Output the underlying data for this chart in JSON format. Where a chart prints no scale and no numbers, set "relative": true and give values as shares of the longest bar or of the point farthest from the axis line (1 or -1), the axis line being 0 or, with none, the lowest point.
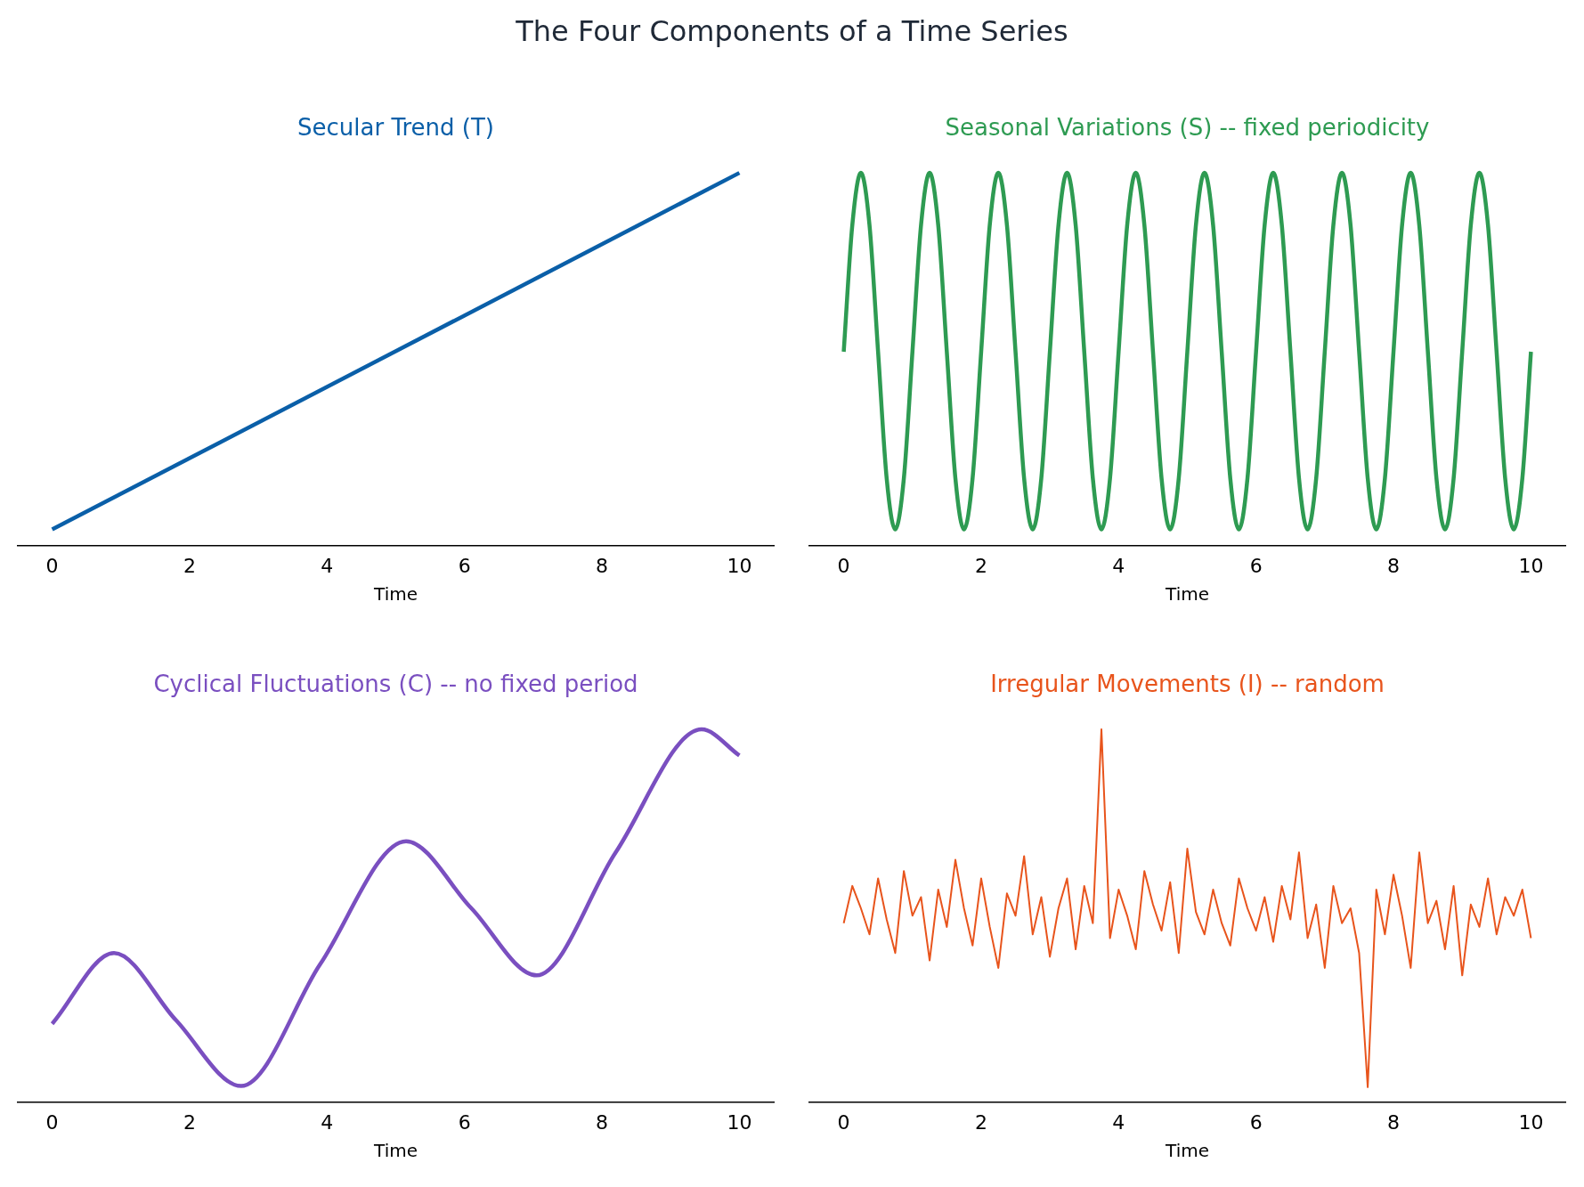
{
  "chart_data": [
    {
      "type": "line",
      "title": "Secular Trend (T)",
      "xlabel": "Time",
      "annotations": [
        "The Four Components of a Time Series"
      ],
      "relative": true,
      "xlim": [
        -0.5,
        10.5
      ],
      "xticks": [
        0,
        2,
        4,
        6,
        8,
        10
      ],
      "tick_labels": "x",
      "grid": false,
      "legend": false,
      "marker": "none",
      "line_style": "solid",
      "color": "#0a5fa8",
      "x": [
        0,
        10
      ],
      "values": [
        0.043,
        1
      ]
    },
    {
      "type": "line",
      "title": "Seasonal Variations (S) -- fixed periodicity",
      "xlabel": "Time",
      "relative": true,
      "xlim": [
        -0.5,
        10.5
      ],
      "xticks": [
        0,
        2,
        4,
        6,
        8,
        10
      ],
      "tick_labels": "x",
      "grid": false,
      "legend": false,
      "marker": "none",
      "line_style": "solid",
      "color": "#2e9b52",
      "x": [
        0,
        0.125,
        0.25,
        0.375,
        0.5,
        0.625,
        0.75,
        0.875,
        1,
        1.125,
        1.25,
        1.375,
        1.5,
        1.625,
        1.75,
        1.875,
        2,
        2.125,
        2.25,
        2.375,
        2.5,
        2.625,
        2.75,
        2.875,
        3,
        3.125,
        3.25,
        3.375,
        3.5,
        3.625,
        3.75,
        3.875,
        4,
        4.125,
        4.25,
        4.375,
        4.5,
        4.625,
        4.75,
        4.875,
        5,
        5.125,
        5.25,
        5.375,
        5.5,
        5.625,
        5.75,
        5.875,
        6,
        6.125,
        6.25,
        6.375,
        6.5,
        6.625,
        6.75,
        6.875,
        7,
        7.125,
        7.25,
        7.375,
        7.5,
        7.625,
        7.75,
        7.875,
        8,
        8.125,
        8.25,
        8.375,
        8.5,
        8.625,
        8.75,
        8.875,
        9,
        9.125,
        9.25,
        9.375,
        9.5,
        9.625,
        9.75,
        9.875,
        10
      ],
      "values": [
        0.52,
        0.86,
        1,
        0.86,
        0.52,
        0.18,
        0.043,
        0.18,
        0.52,
        0.86,
        1,
        0.86,
        0.52,
        0.18,
        0.043,
        0.18,
        0.52,
        0.86,
        1,
        0.86,
        0.52,
        0.18,
        0.043,
        0.18,
        0.52,
        0.86,
        1,
        0.86,
        0.52,
        0.18,
        0.043,
        0.18,
        0.52,
        0.86,
        1,
        0.86,
        0.52,
        0.18,
        0.043,
        0.18,
        0.52,
        0.86,
        1,
        0.86,
        0.52,
        0.18,
        0.043,
        0.18,
        0.52,
        0.86,
        1,
        0.86,
        0.52,
        0.18,
        0.043,
        0.18,
        0.52,
        0.86,
        1,
        0.86,
        0.52,
        0.18,
        0.043,
        0.18,
        0.52,
        0.86,
        1,
        0.86,
        0.52,
        0.18,
        0.043,
        0.18,
        0.52,
        0.86,
        1,
        0.86,
        0.52,
        0.18,
        0.043,
        0.18,
        0.52
      ]
    },
    {
      "type": "line",
      "title": "Cyclical Fluctuations (C) -- no fixed period",
      "xlabel": "Time",
      "relative": true,
      "xlim": [
        -0.5,
        10.5
      ],
      "xticks": [
        0,
        2,
        4,
        6,
        8,
        10
      ],
      "tick_labels": "x",
      "grid": false,
      "legend": false,
      "marker": "none",
      "line_style": "solid",
      "color": "#7a4fc0",
      "x": [
        0,
        0.9,
        1.8,
        2.75,
        3.9,
        5.15,
        6.1,
        7.05,
        8.2,
        9.45,
        10
      ],
      "values": [
        0.21,
        0.4,
        0.22,
        0.043,
        0.37,
        0.7,
        0.52,
        0.34,
        0.67,
        1,
        0.93
      ]
    },
    {
      "type": "line",
      "title": "Irregular Movements (I) -- random",
      "xlabel": "Time",
      "relative": true,
      "xlim": [
        -0.5,
        10.5
      ],
      "xticks": [
        0,
        2,
        4,
        6,
        8,
        10
      ],
      "tick_labels": "x",
      "grid": false,
      "legend": false,
      "marker": "none",
      "line_style": "solid",
      "color": "#e8541c",
      "x": [
        0,
        0.125,
        0.25,
        0.375,
        0.5,
        0.625,
        0.75,
        0.875,
        1,
        1.125,
        1.25,
        1.375,
        1.5,
        1.625,
        1.75,
        1.875,
        2,
        2.125,
        2.25,
        2.375,
        2.5,
        2.625,
        2.75,
        2.875,
        3,
        3.125,
        3.25,
        3.375,
        3.5,
        3.625,
        3.75,
        3.875,
        4,
        4.125,
        4.25,
        4.375,
        4.5,
        4.625,
        4.75,
        4.875,
        5,
        5.125,
        5.25,
        5.375,
        5.5,
        5.625,
        5.75,
        5.875,
        6,
        6.125,
        6.25,
        6.375,
        6.5,
        6.625,
        6.75,
        6.875,
        7,
        7.125,
        7.25,
        7.375,
        7.5,
        7.625,
        7.75,
        7.875,
        8,
        8.125,
        8.25,
        8.375,
        8.5,
        8.625,
        8.75,
        8.875,
        9,
        9.125,
        9.25,
        9.375,
        9.5,
        9.625,
        9.75,
        9.875,
        10
      ],
      "values": [
        0.48,
        0.58,
        0.52,
        0.45,
        0.6,
        0.49,
        0.4,
        0.62,
        0.5,
        0.55,
        0.38,
        0.57,
        0.47,
        0.65,
        0.52,
        0.42,
        0.6,
        0.47,
        0.36,
        0.56,
        0.5,
        0.66,
        0.45,
        0.55,
        0.39,
        0.52,
        0.6,
        0.41,
        0.58,
        0.48,
        1,
        0.44,
        0.57,
        0.5,
        0.41,
        0.62,
        0.53,
        0.46,
        0.59,
        0.4,
        0.68,
        0.51,
        0.45,
        0.57,
        0.48,
        0.42,
        0.6,
        0.52,
        0.46,
        0.55,
        0.43,
        0.58,
        0.49,
        0.67,
        0.44,
        0.53,
        0.36,
        0.58,
        0.48,
        0.52,
        0.4,
        0.04,
        0.57,
        0.45,
        0.61,
        0.5,
        0.36,
        0.67,
        0.48,
        0.54,
        0.41,
        0.58,
        0.34,
        0.53,
        0.47,
        0.6,
        0.45,
        0.55,
        0.5,
        0.57,
        0.44
      ]
    }
  ]
}
